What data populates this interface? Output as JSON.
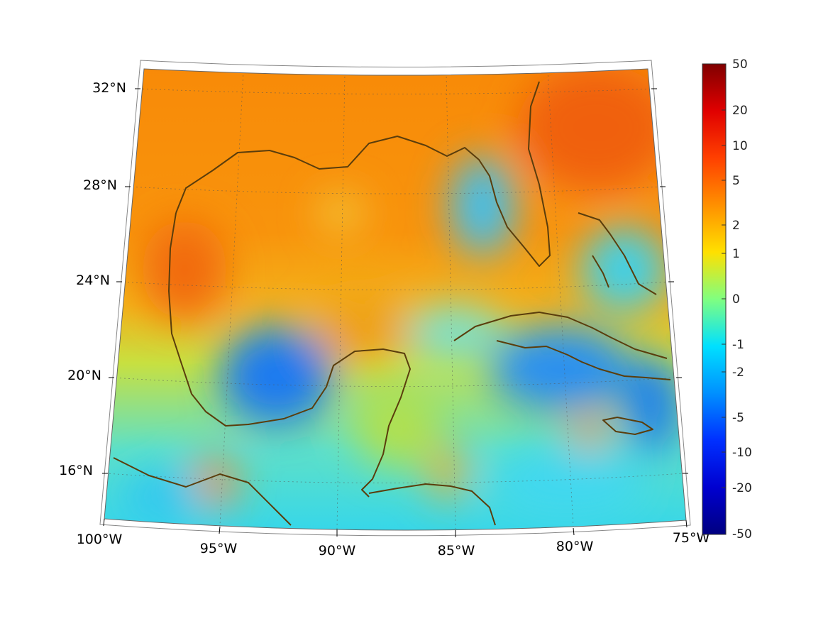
{
  "map": {
    "projection": "conic",
    "lat_labels": [
      "32°N",
      "28°N",
      "24°N",
      "20°N",
      "16°N"
    ],
    "lon_labels": [
      "100°W",
      "95°W",
      "90°W",
      "85°W",
      "80°W",
      "75°W"
    ],
    "coastline_color": "#5a3d0c",
    "grid": true
  },
  "colorbar": {
    "ticks": [
      "50",
      "20",
      "10",
      "5",
      "2",
      "1",
      "0",
      "-1",
      "-2",
      "-5",
      "-10",
      "-20",
      "-50"
    ],
    "colormap": "jet"
  }
}
